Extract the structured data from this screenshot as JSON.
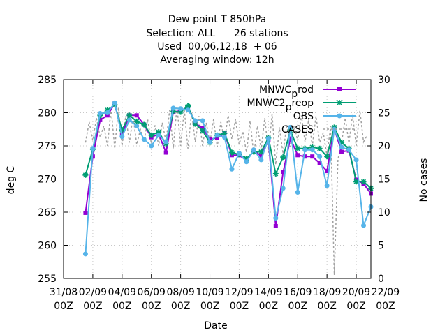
{
  "chart_data": {
    "type": "line",
    "title_lines": [
      "Dew point T 850hPa",
      "Selection: ALL      26 stations",
      "Used  00,06,12,18  + 06",
      "Averaging window: 12h"
    ],
    "xlabel": "Date",
    "ylabel": "deg C",
    "y2label": "No cases",
    "xlim": [
      0,
      21
    ],
    "ylim": [
      255,
      285
    ],
    "y2lim": [
      0,
      30
    ],
    "x_ticks": [
      {
        "pos": 0,
        "line1": "31/08",
        "line2": "00Z"
      },
      {
        "pos": 2,
        "line1": "02/09",
        "line2": "00Z"
      },
      {
        "pos": 4,
        "line1": "04/09",
        "line2": "00Z"
      },
      {
        "pos": 6,
        "line1": "06/09",
        "line2": "00Z"
      },
      {
        "pos": 8,
        "line1": "08/09",
        "line2": "00Z"
      },
      {
        "pos": 10,
        "line1": "10/09",
        "line2": "00Z"
      },
      {
        "pos": 12,
        "line1": "12/09",
        "line2": "00Z"
      },
      {
        "pos": 14,
        "line1": "14/09",
        "line2": "00Z"
      },
      {
        "pos": 16,
        "line1": "16/09",
        "line2": "00Z"
      },
      {
        "pos": 18,
        "line1": "18/09",
        "line2": "00Z"
      },
      {
        "pos": 20,
        "line1": "20/09",
        "line2": "00Z"
      },
      {
        "pos": 22,
        "line1": "22/09",
        "line2": "00Z"
      }
    ],
    "y_ticks": [
      "255",
      "260",
      "265",
      "270",
      "275",
      "280",
      "285"
    ],
    "y2_ticks": [
      "0",
      "5",
      "10",
      "15",
      "20",
      "25",
      "30"
    ],
    "grid": true,
    "legend_position": "top-right",
    "legend": {
      "mnwc_prod": {
        "main": "MNWC",
        "sub": "p",
        "rest": "rod"
      },
      "mnwc2_preop": {
        "main": "MNWC2",
        "sub": "p",
        "rest": "reop"
      },
      "obs": {
        "label": "OBS"
      },
      "cases": {
        "label": "CASES"
      }
    },
    "colors": {
      "mnwc_prod": "#9400d3",
      "mnwc2_preop": "#009e73",
      "obs": "#56b4e9",
      "cases": "#a0a0a0",
      "grid": "#c8c8c8"
    },
    "series": [
      {
        "key": "mnwc_prod",
        "points": [
          [
            1.5,
            264.9
          ],
          [
            2.0,
            273.4
          ],
          [
            2.5,
            278.9
          ],
          [
            3.0,
            279.6
          ],
          [
            3.5,
            281.4
          ],
          [
            4.0,
            276.7
          ],
          [
            4.5,
            279.6
          ],
          [
            5.0,
            279.6
          ],
          [
            5.5,
            278.2
          ],
          [
            6.0,
            276.3
          ],
          [
            6.5,
            276.8
          ],
          [
            7.0,
            274.0
          ],
          [
            7.5,
            280.1
          ],
          [
            8.0,
            280.3
          ],
          [
            8.5,
            280.9
          ],
          [
            9.0,
            278.4
          ],
          [
            9.5,
            277.7
          ],
          [
            10.0,
            276.0
          ],
          [
            10.5,
            276.2
          ],
          [
            11.0,
            276.9
          ],
          [
            11.5,
            273.6
          ],
          [
            12.0,
            273.6
          ],
          [
            12.5,
            272.8
          ],
          [
            13.0,
            274.3
          ],
          [
            13.5,
            273.5
          ],
          [
            14.0,
            275.9
          ],
          [
            14.5,
            262.9
          ],
          [
            15.0,
            271.0
          ],
          [
            15.5,
            276.1
          ],
          [
            16.0,
            273.6
          ],
          [
            16.5,
            273.4
          ],
          [
            17.0,
            273.4
          ],
          [
            17.5,
            272.4
          ],
          [
            18.0,
            271.2
          ],
          [
            18.5,
            277.6
          ],
          [
            19.0,
            274.1
          ],
          [
            19.5,
            274.3
          ],
          [
            20.0,
            269.9
          ],
          [
            20.5,
            269.3
          ],
          [
            21.0,
            267.8
          ]
        ]
      },
      {
        "key": "mnwc2_preop",
        "points": [
          [
            1.5,
            270.6
          ],
          [
            2.0,
            274.5
          ],
          [
            2.5,
            279.6
          ],
          [
            3.0,
            280.4
          ],
          [
            3.5,
            281.2
          ],
          [
            4.0,
            277.4
          ],
          [
            4.5,
            279.6
          ],
          [
            5.0,
            278.7
          ],
          [
            5.5,
            278.2
          ],
          [
            6.0,
            276.6
          ],
          [
            6.5,
            277.1
          ],
          [
            7.0,
            275.3
          ],
          [
            7.5,
            280.2
          ],
          [
            8.0,
            280.1
          ],
          [
            8.5,
            281.0
          ],
          [
            9.0,
            278.3
          ],
          [
            9.5,
            277.3
          ],
          [
            10.0,
            275.5
          ],
          [
            10.5,
            276.6
          ],
          [
            11.0,
            276.9
          ],
          [
            11.5,
            274.0
          ],
          [
            12.0,
            273.7
          ],
          [
            12.5,
            273.1
          ],
          [
            13.0,
            274.1
          ],
          [
            13.5,
            274.1
          ],
          [
            14.0,
            276.2
          ],
          [
            14.5,
            270.8
          ],
          [
            15.0,
            273.3
          ],
          [
            15.5,
            277.3
          ],
          [
            16.0,
            274.6
          ],
          [
            16.5,
            274.6
          ],
          [
            17.0,
            274.8
          ],
          [
            17.5,
            274.6
          ],
          [
            18.0,
            273.4
          ],
          [
            18.5,
            277.8
          ],
          [
            19.0,
            275.5
          ],
          [
            19.5,
            274.6
          ],
          [
            20.0,
            269.6
          ],
          [
            20.5,
            269.6
          ],
          [
            21.0,
            268.6
          ]
        ]
      },
      {
        "key": "obs",
        "points": [
          [
            1.5,
            258.7
          ],
          [
            2.0,
            274.6
          ],
          [
            2.5,
            279.9
          ],
          [
            3.0,
            280.0
          ],
          [
            3.5,
            281.5
          ],
          [
            4.0,
            276.4
          ],
          [
            4.5,
            278.9
          ],
          [
            5.0,
            278.0
          ],
          [
            5.5,
            276.0
          ],
          [
            6.0,
            275.0
          ],
          [
            6.5,
            276.6
          ],
          [
            7.0,
            275.6
          ],
          [
            7.5,
            280.7
          ],
          [
            8.0,
            280.6
          ],
          [
            8.5,
            280.4
          ],
          [
            9.0,
            278.8
          ],
          [
            9.5,
            278.8
          ],
          [
            10.0,
            275.6
          ],
          [
            10.5,
            276.6
          ],
          [
            11.0,
            276.3
          ],
          [
            11.5,
            271.5
          ],
          [
            12.0,
            273.9
          ],
          [
            12.5,
            272.6
          ],
          [
            13.0,
            274.4
          ],
          [
            13.5,
            272.9
          ],
          [
            14.0,
            276.1
          ],
          [
            14.5,
            264.1
          ],
          [
            15.0,
            268.6
          ],
          [
            15.5,
            277.8
          ],
          [
            16.0,
            268.0
          ],
          [
            16.5,
            274.4
          ],
          [
            17.0,
            274.4
          ],
          [
            17.5,
            273.4
          ],
          [
            18.0,
            269.0
          ],
          [
            18.5,
            277.5
          ],
          [
            19.0,
            274.8
          ],
          [
            19.5,
            274.4
          ],
          [
            20.0,
            272.9
          ],
          [
            20.5,
            263.0
          ],
          [
            21.0,
            265.8
          ]
        ]
      }
    ],
    "cases_series": {
      "key": "cases",
      "points": [
        [
          1.5,
          20.5
        ],
        [
          1.75,
          23.6
        ],
        [
          2.0,
          20.8
        ],
        [
          2.25,
          24.2
        ],
        [
          2.5,
          21.3
        ],
        [
          2.75,
          23.0
        ],
        [
          3.0,
          20.0
        ],
        [
          3.25,
          25.6
        ],
        [
          3.5,
          19.6
        ],
        [
          3.75,
          25.8
        ],
        [
          4.0,
          20.0
        ],
        [
          4.25,
          24.5
        ],
        [
          4.5,
          20.5
        ],
        [
          4.75,
          24.5
        ],
        [
          5.0,
          20.2
        ],
        [
          5.25,
          22.5
        ],
        [
          5.5,
          20.6
        ],
        [
          5.75,
          24.0
        ],
        [
          6.0,
          20.3
        ],
        [
          6.25,
          23.1
        ],
        [
          6.5,
          20.0
        ],
        [
          6.75,
          23.5
        ],
        [
          7.0,
          20.6
        ],
        [
          7.25,
          25.4
        ],
        [
          7.5,
          19.6
        ],
        [
          7.75,
          26.0
        ],
        [
          8.0,
          20.0
        ],
        [
          8.25,
          25.5
        ],
        [
          8.5,
          19.6
        ],
        [
          8.75,
          25.0
        ],
        [
          9.0,
          20.6
        ],
        [
          9.25,
          24.5
        ],
        [
          9.5,
          20.0
        ],
        [
          9.75,
          23.5
        ],
        [
          10.0,
          20.5
        ],
        [
          10.25,
          24.0
        ],
        [
          10.5,
          19.8
        ],
        [
          10.75,
          23.6
        ],
        [
          11.0,
          20.8
        ],
        [
          11.25,
          24.6
        ],
        [
          11.5,
          21.0
        ],
        [
          11.75,
          24.0
        ],
        [
          12.0,
          20.2
        ],
        [
          12.25,
          22.2
        ],
        [
          12.5,
          19.0
        ],
        [
          12.75,
          23.8
        ],
        [
          13.0,
          18.6
        ],
        [
          13.25,
          23.0
        ],
        [
          13.5,
          19.5
        ],
        [
          13.75,
          24.2
        ],
        [
          14.0,
          19.0
        ],
        [
          14.25,
          24.8
        ],
        [
          14.5,
          17.2
        ],
        [
          14.75,
          22.8
        ],
        [
          15.0,
          18.8
        ],
        [
          15.25,
          23.2
        ],
        [
          15.5,
          19.8
        ],
        [
          15.75,
          23.0
        ],
        [
          16.0,
          20.8
        ],
        [
          16.25,
          24.6
        ],
        [
          16.5,
          20.6
        ],
        [
          16.75,
          24.0
        ],
        [
          17.0,
          20.0
        ],
        [
          17.25,
          24.5
        ],
        [
          17.5,
          20.5
        ],
        [
          17.75,
          22.0
        ],
        [
          18.0,
          18.5
        ],
        [
          18.25,
          23.0
        ],
        [
          18.5,
          0.5
        ],
        [
          18.75,
          18.0
        ],
        [
          19.0,
          20.5
        ],
        [
          19.25,
          24.2
        ],
        [
          19.5,
          20.4
        ],
        [
          19.75,
          24.7
        ],
        [
          20.0,
          20.0
        ],
        [
          20.25,
          25.3
        ],
        [
          20.5,
          20.6
        ],
        [
          20.75,
          21.6
        ]
      ]
    }
  }
}
